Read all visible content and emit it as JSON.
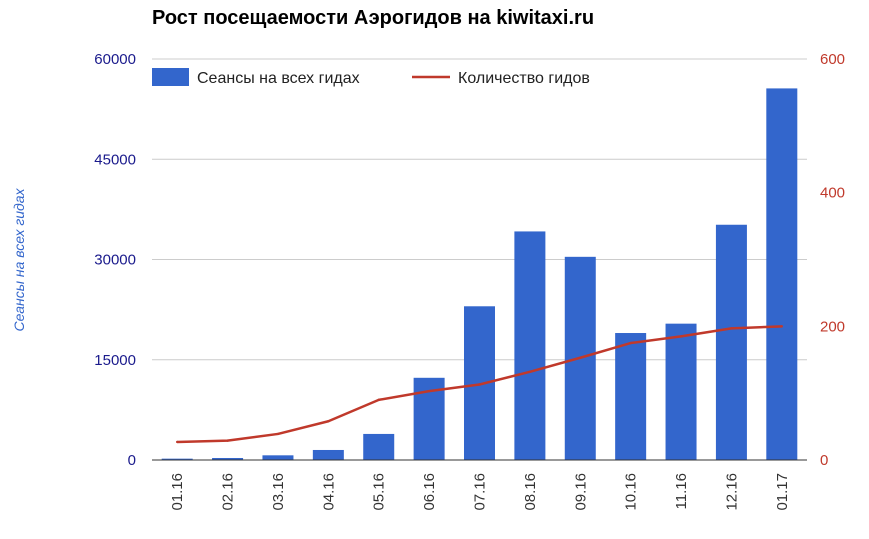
{
  "chart_data": {
    "type": "bar+line",
    "title": "Рост посещаемости Аэрогидов на kiwitaxi.ru",
    "categories": [
      "01.16",
      "02.16",
      "03.16",
      "04.16",
      "05.16",
      "06.16",
      "07.16",
      "08.16",
      "09.16",
      "10.16",
      "11.16",
      "12.16",
      "01.17"
    ],
    "series": [
      {
        "name": "Сеансы на всех гидах",
        "type": "bar",
        "axis": "left",
        "color": "#3366cc",
        "values": [
          200,
          300,
          700,
          1500,
          3900,
          12300,
          23000,
          34200,
          30400,
          19000,
          20400,
          35200,
          55600
        ]
      },
      {
        "name": "Количество гидов",
        "type": "line",
        "axis": "right",
        "color": "#c0392b",
        "values": [
          27,
          29,
          39,
          58,
          90,
          103,
          113,
          132,
          153,
          175,
          185,
          197,
          200
        ]
      }
    ],
    "ylabel": "Сеансы на всех гидах",
    "y_left": {
      "ylim": [
        0,
        60000
      ],
      "ticks": [
        "0",
        "15000",
        "30000",
        "45000",
        "60000"
      ],
      "color": "#1a1a8c"
    },
    "y_right": {
      "ylim": [
        0,
        600
      ],
      "ticks": [
        "0",
        "200",
        "400",
        "600"
      ],
      "color": "#c0392b"
    },
    "grid": true,
    "legend_position": "top-left"
  }
}
